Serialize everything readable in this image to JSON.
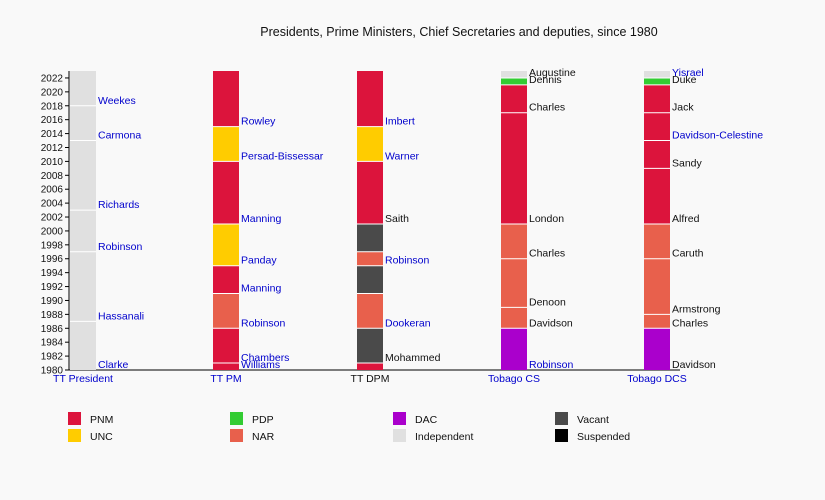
{
  "chart_data": {
    "type": "bar",
    "title": "Presidents, Prime Ministers, Chief Secretaries and deputies, since 1980",
    "ylim": [
      1980,
      2023
    ],
    "yticks": [
      1980,
      1982,
      1984,
      1986,
      1988,
      1990,
      1992,
      1994,
      1996,
      1998,
      2000,
      2002,
      2004,
      2006,
      2008,
      2010,
      2012,
      2014,
      2016,
      2018,
      2020,
      2022
    ],
    "party_colors": {
      "PNM": "#dc143c",
      "UNC": "#ffcc00",
      "PDP": "#33cc33",
      "NAR": "#e8604c",
      "DAC": "#aa00cc",
      "Independent": "#e0e0e0",
      "Vacant": "#4a4a4a",
      "Suspended": "#000000"
    },
    "legend": [
      {
        "name": "PNM",
        "party": "PNM"
      },
      {
        "name": "UNC",
        "party": "UNC"
      },
      {
        "name": "PDP",
        "party": "PDP"
      },
      {
        "name": "NAR",
        "party": "NAR"
      },
      {
        "name": "DAC",
        "party": "DAC"
      },
      {
        "name": "Independent",
        "party": "Independent"
      },
      {
        "name": "Vacant",
        "party": "Vacant"
      },
      {
        "name": "Suspended",
        "party": "Suspended"
      }
    ],
    "columns": [
      {
        "label": "TT President",
        "segments": [
          {
            "party": "Independent",
            "start": 1980,
            "end": 1987,
            "label": "Clarke",
            "linked": true
          },
          {
            "party": "Independent",
            "start": 1987,
            "end": 1997,
            "label": "Hassanali",
            "linked": true
          },
          {
            "party": "Independent",
            "start": 1997,
            "end": 2003,
            "label": "Robinson",
            "linked": true
          },
          {
            "party": "Independent",
            "start": 2003,
            "end": 2013,
            "label": "Richards",
            "linked": true
          },
          {
            "party": "Independent",
            "start": 2013,
            "end": 2018,
            "label": "Carmona",
            "linked": true
          },
          {
            "party": "Independent",
            "start": 2018,
            "end": 2023,
            "label": "Weekes",
            "linked": true
          }
        ]
      },
      {
        "label": "TT PM",
        "segments": [
          {
            "party": "PNM",
            "start": 1980,
            "end": 1981,
            "label": "Williams",
            "linked": true
          },
          {
            "party": "PNM",
            "start": 1981,
            "end": 1986,
            "label": "Chambers",
            "linked": true
          },
          {
            "party": "NAR",
            "start": 1986,
            "end": 1991,
            "label": "Robinson",
            "linked": true
          },
          {
            "party": "PNM",
            "start": 1991,
            "end": 1995,
            "label": "Manning",
            "linked": true
          },
          {
            "party": "UNC",
            "start": 1995,
            "end": 2001,
            "label": "Panday",
            "linked": true
          },
          {
            "party": "PNM",
            "start": 2001,
            "end": 2010,
            "label": "Manning",
            "linked": true
          },
          {
            "party": "UNC",
            "start": 2010,
            "end": 2015,
            "label": "Persad-Bissessar",
            "linked": true
          },
          {
            "party": "PNM",
            "start": 2015,
            "end": 2023,
            "label": "Rowley",
            "linked": true
          }
        ]
      },
      {
        "label": "TT DPM",
        "segments": [
          {
            "party": "PNM",
            "start": 1980,
            "end": 1981,
            "label": "",
            "linked": false
          },
          {
            "party": "Vacant",
            "start": 1981,
            "end": 1986,
            "label": "Mohammed",
            "linked": false
          },
          {
            "party": "NAR",
            "start": 1986,
            "end": 1991,
            "label": "Dookeran",
            "linked": true
          },
          {
            "party": "Vacant",
            "start": 1991,
            "end": 1995,
            "label": "",
            "linked": false
          },
          {
            "party": "NAR",
            "start": 1995,
            "end": 1997,
            "label": "Robinson",
            "linked": true
          },
          {
            "party": "Vacant",
            "start": 1997,
            "end": 2001,
            "label": "",
            "linked": false
          },
          {
            "party": "PNM",
            "start": 2001,
            "end": 2010,
            "label": "Saith",
            "linked": false
          },
          {
            "party": "UNC",
            "start": 2010,
            "end": 2015,
            "label": "Warner",
            "linked": true
          },
          {
            "party": "PNM",
            "start": 2015,
            "end": 2023,
            "label": "Imbert",
            "linked": true
          }
        ]
      },
      {
        "label": "Tobago CS",
        "segments": [
          {
            "party": "DAC",
            "start": 1980,
            "end": 1986,
            "label": "Robinson",
            "linked": true
          },
          {
            "party": "NAR",
            "start": 1986,
            "end": 1989,
            "label": "Davidson",
            "linked": false
          },
          {
            "party": "NAR",
            "start": 1989,
            "end": 1996,
            "label": "Denoon",
            "linked": false
          },
          {
            "party": "NAR",
            "start": 1996,
            "end": 2001,
            "label": "Charles",
            "linked": false
          },
          {
            "party": "PNM",
            "start": 2001,
            "end": 2017,
            "label": "London",
            "linked": false
          },
          {
            "party": "PNM",
            "start": 2017,
            "end": 2021,
            "label": "Charles",
            "linked": false
          },
          {
            "party": "PDP",
            "start": 2021,
            "end": 2022,
            "label": "Dennis",
            "linked": false
          },
          {
            "party": "Independent",
            "start": 2022,
            "end": 2023,
            "label": "Augustine",
            "linked": false
          }
        ]
      },
      {
        "label": "Tobago DCS",
        "segments": [
          {
            "party": "DAC",
            "start": 1980,
            "end": 1986,
            "label": "Davidson",
            "linked": false
          },
          {
            "party": "NAR",
            "start": 1986,
            "end": 1988,
            "label": "Charles",
            "linked": false
          },
          {
            "party": "NAR",
            "start": 1988,
            "end": 1996,
            "label": "Armstrong",
            "linked": false
          },
          {
            "party": "NAR",
            "start": 1996,
            "end": 2001,
            "label": "Caruth",
            "linked": false
          },
          {
            "party": "PNM",
            "start": 2001,
            "end": 2009,
            "label": "Alfred",
            "linked": false
          },
          {
            "party": "PNM",
            "start": 2009,
            "end": 2013,
            "label": "Sandy",
            "linked": false
          },
          {
            "party": "PNM",
            "start": 2013,
            "end": 2017,
            "label": "Davidson-Celestine",
            "linked": true
          },
          {
            "party": "PNM",
            "start": 2017,
            "end": 2021,
            "label": "Jack",
            "linked": false
          },
          {
            "party": "PDP",
            "start": 2021,
            "end": 2022,
            "label": "Duke",
            "linked": false
          },
          {
            "party": "Independent",
            "start": 2022,
            "end": 2023,
            "label": "Yisrael",
            "linked": true
          }
        ]
      }
    ]
  }
}
